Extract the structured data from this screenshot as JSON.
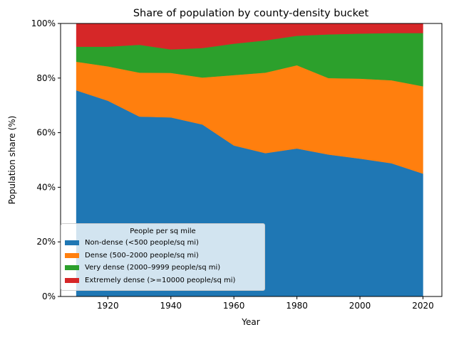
{
  "chart_data": {
    "type": "area",
    "stacked": true,
    "title": "Share of population by county-density bucket",
    "xlabel": "Year",
    "ylabel": "Population share (%)",
    "x": [
      1910,
      1920,
      1930,
      1940,
      1950,
      1960,
      1970,
      1980,
      1990,
      2000,
      2010,
      2020
    ],
    "xlim": [
      1905,
      2026
    ],
    "ylim": [
      0,
      100
    ],
    "xticks": [
      1920,
      1940,
      1960,
      1980,
      2000,
      2020
    ],
    "xtick_labels": [
      "1920",
      "1940",
      "1960",
      "1980",
      "2000",
      "2020"
    ],
    "yticks": [
      0,
      20,
      40,
      60,
      80,
      100
    ],
    "ytick_labels": [
      "0%",
      "20%",
      "40%",
      "60%",
      "80%",
      "100%"
    ],
    "legend_title": "People per sq mile",
    "legend_position": "lower-left",
    "series": [
      {
        "name": "Non-dense (<500 people/sq mi)",
        "color": "#1f77b4",
        "values": [
          75.5,
          71.7,
          65.9,
          65.6,
          63.0,
          55.3,
          52.5,
          54.2,
          52.0,
          50.5,
          48.8,
          45.0
        ]
      },
      {
        "name": "Dense (500–2000 people/sq mi)",
        "color": "#ff7f0e",
        "values": [
          10.5,
          12.6,
          16.1,
          16.3,
          17.2,
          25.8,
          29.5,
          30.5,
          28.0,
          29.3,
          30.4,
          32.0
        ]
      },
      {
        "name": "Very dense (2000–9999 people/sq mi)",
        "color": "#2ca02c",
        "values": [
          5.5,
          7.2,
          10.2,
          8.6,
          10.8,
          11.5,
          11.8,
          10.8,
          16.0,
          16.5,
          17.3,
          19.5
        ]
      },
      {
        "name": "Extremely dense (>=10000 people/sq mi)",
        "color": "#d62728",
        "values": [
          8.5,
          8.5,
          7.8,
          9.5,
          9.0,
          7.4,
          6.2,
          4.5,
          4.0,
          3.7,
          3.5,
          3.5
        ]
      }
    ]
  }
}
